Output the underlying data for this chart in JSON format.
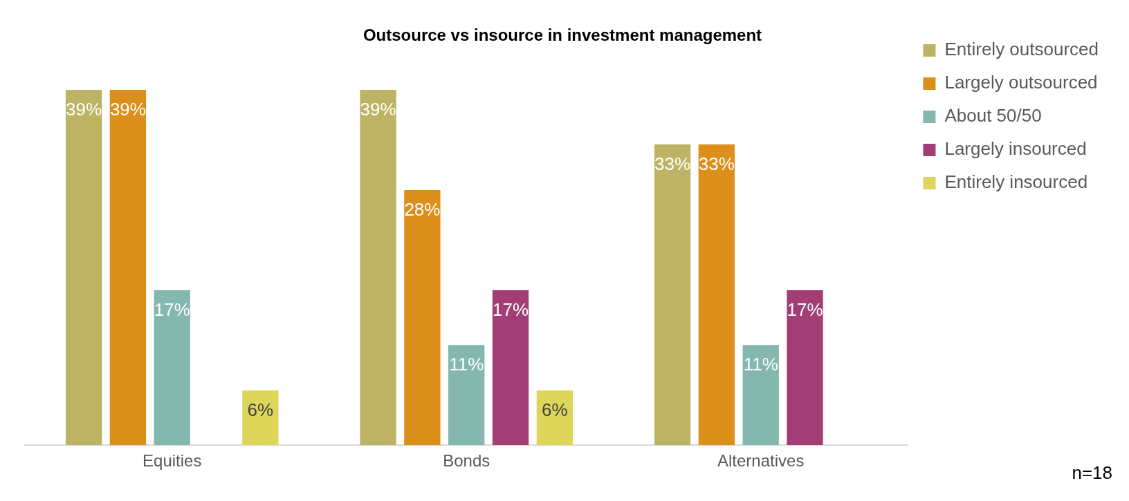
{
  "chart_data": {
    "type": "bar",
    "title": "Outsource vs insource in investment management",
    "categories": [
      "Equities",
      "Bonds",
      "Alternatives"
    ],
    "series": [
      {
        "name": "Entirely outsourced",
        "color": "#bcb464",
        "values": [
          39,
          39,
          33
        ],
        "value_labels": [
          "39%",
          "39%",
          "33%"
        ]
      },
      {
        "name": "Largely outsourced",
        "color": "#dc8f1b",
        "values": [
          39,
          28,
          33
        ],
        "value_labels": [
          "39%",
          "28%",
          "33%"
        ]
      },
      {
        "name": "About 50/50",
        "color": "#84b8ae",
        "values": [
          17,
          11,
          11
        ],
        "value_labels": [
          "17%",
          "11%",
          "11%"
        ]
      },
      {
        "name": "Largely insourced",
        "color": "#a23d76",
        "values": [
          null,
          17,
          17
        ],
        "value_labels": [
          null,
          "17%",
          "17%"
        ]
      },
      {
        "name": "Entirely insourced",
        "color": "#ded65a",
        "values": [
          6,
          6,
          null
        ],
        "value_labels": [
          "6%",
          "6%",
          null
        ]
      }
    ],
    "legend": "top right",
    "annotations": [
      "n=18"
    ]
  }
}
